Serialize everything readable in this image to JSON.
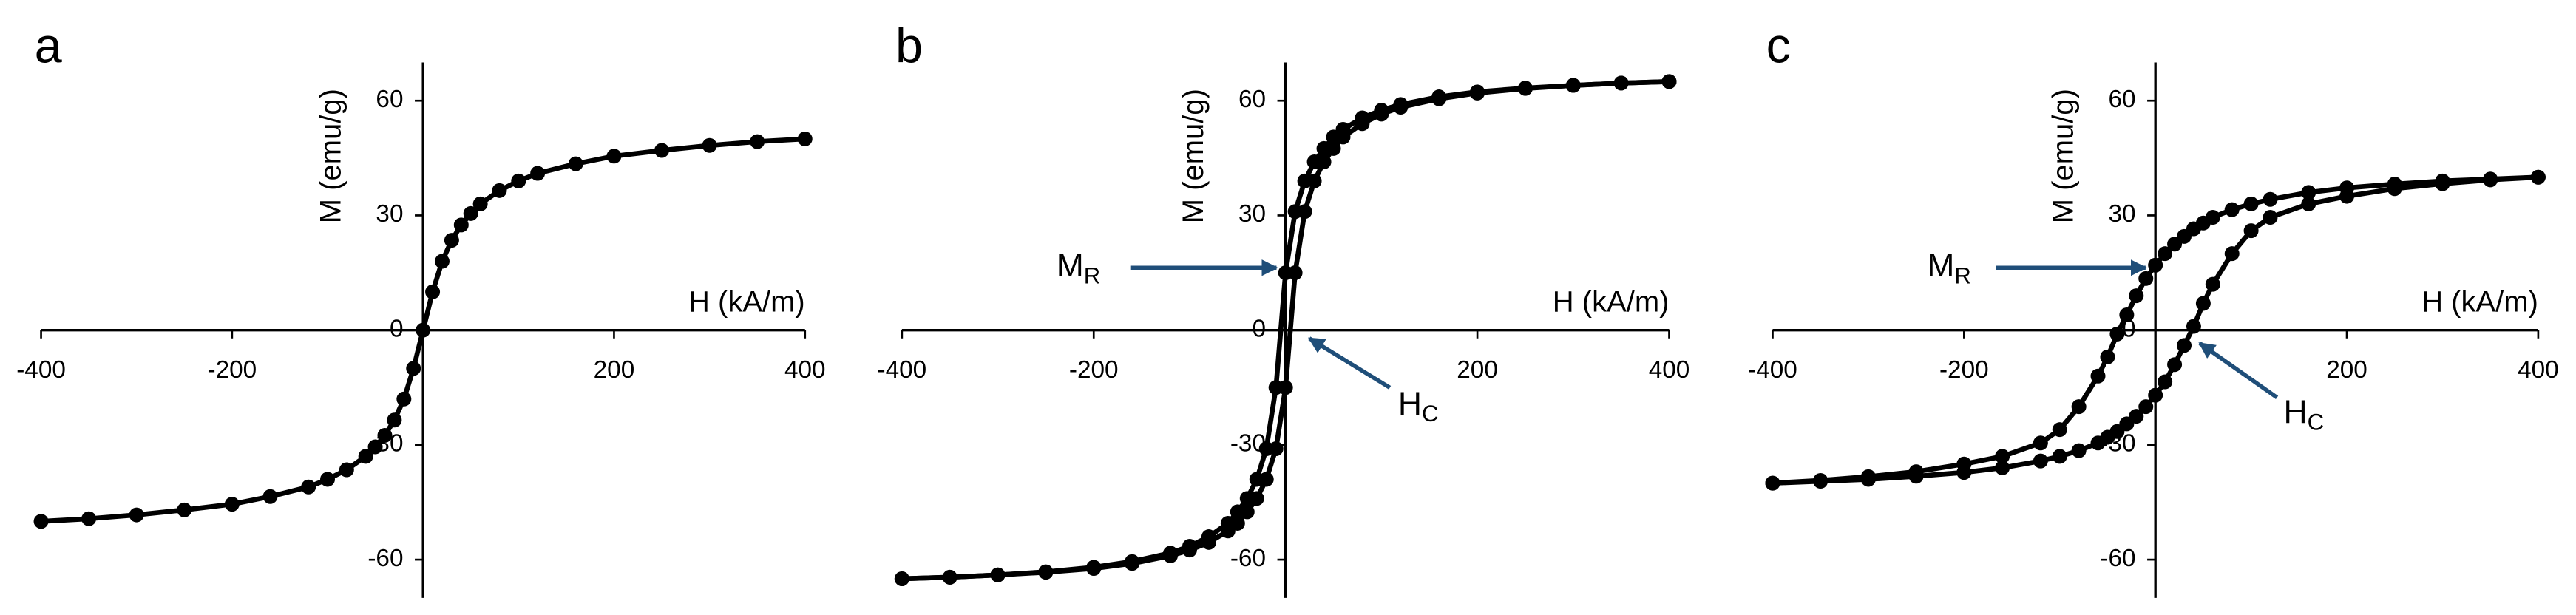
{
  "chart_data": [
    {
      "type": "line",
      "panel_label": "a",
      "xlabel": "H (kA/m)",
      "ylabel": "M (emu/g)",
      "x": [
        -400,
        -350,
        -300,
        -250,
        -200,
        -160,
        -120,
        -100,
        -80,
        -60,
        -50,
        -40,
        -30,
        -20,
        -10,
        0,
        10,
        20,
        30,
        40,
        50,
        60,
        80,
        100,
        120,
        160,
        200,
        250,
        300,
        350,
        400
      ],
      "series": [
        {
          "color": "#000000",
          "values": [
            -50,
            -49.3,
            -48.3,
            -47,
            -45.5,
            -43.5,
            -41,
            -39,
            -36.5,
            -33,
            -30.5,
            -27.5,
            -23.5,
            -18,
            -10,
            0,
            10,
            18,
            23.5,
            27.5,
            30.5,
            33,
            36.5,
            39,
            41,
            43.5,
            45.5,
            47,
            48.3,
            49.3,
            50
          ]
        }
      ],
      "xlim": [
        -400,
        400
      ],
      "ylim": [
        -70,
        70
      ],
      "xticks": [
        -400,
        -200,
        200,
        400
      ],
      "yticks": [
        -60,
        -30,
        0,
        30,
        60
      ]
    },
    {
      "type": "line",
      "panel_label": "b",
      "xlabel": "H (kA/m)",
      "ylabel": "M (emu/g)",
      "x": [
        -400,
        -350,
        -300,
        -250,
        -200,
        -160,
        -120,
        -100,
        -80,
        -60,
        -50,
        -40,
        -30,
        -20,
        -10,
        0,
        10,
        20,
        30,
        40,
        50,
        60,
        80,
        100,
        120,
        160,
        200,
        250,
        300,
        350,
        400
      ],
      "series": [
        {
          "color": "#000000",
          "values": [
            -65,
            -64.6,
            -64,
            -63.2,
            -62,
            -60.5,
            -58.3,
            -56.5,
            -54,
            -50.5,
            -47.5,
            -44,
            -39,
            -31,
            -15,
            15,
            31,
            39,
            44,
            47.5,
            50.5,
            52.5,
            55.5,
            57.5,
            59,
            61,
            62.3,
            63.3,
            64,
            64.6,
            65
          ]
        },
        {
          "color": "#000000",
          "values": [
            -65,
            -64.6,
            -64,
            -63.3,
            -62.3,
            -61,
            -59,
            -57.5,
            -55.5,
            -52.5,
            -50.5,
            -47.5,
            -44,
            -39,
            -31,
            -15,
            15,
            31,
            39,
            44,
            47.5,
            50.5,
            54,
            56.5,
            58.3,
            60.5,
            62,
            63.2,
            64,
            64.6,
            65
          ]
        }
      ],
      "xlim": [
        -400,
        400
      ],
      "ylim": [
        -70,
        70
      ],
      "xticks": [
        -400,
        -200,
        200,
        400
      ],
      "yticks": [
        -60,
        -30,
        0,
        30,
        60
      ],
      "annotations": [
        {
          "text": "M",
          "subscript": "R"
        },
        {
          "text": "H",
          "subscript": "C"
        }
      ]
    },
    {
      "type": "line",
      "panel_label": "c",
      "xlabel": "H (kA/m)",
      "ylabel": "M (emu/g)",
      "x": [
        -400,
        -350,
        -300,
        -250,
        -200,
        -160,
        -120,
        -100,
        -80,
        -60,
        -50,
        -40,
        -30,
        -20,
        -10,
        0,
        10,
        20,
        30,
        40,
        50,
        60,
        80,
        100,
        120,
        160,
        200,
        250,
        300,
        350,
        400
      ],
      "series": [
        {
          "color": "#000000",
          "values": [
            -40,
            -39.3,
            -38.3,
            -37,
            -35,
            -33,
            -29.5,
            -26,
            -20,
            -12,
            -7,
            -1,
            4,
            9,
            13.5,
            17,
            20,
            22.5,
            24.5,
            26.5,
            28,
            29.5,
            31.5,
            33,
            34.2,
            36,
            37.2,
            38.2,
            39,
            39.5,
            40
          ]
        },
        {
          "color": "#000000",
          "values": [
            -40,
            -39.5,
            -39,
            -38.2,
            -37.2,
            -36,
            -34.2,
            -33,
            -31.5,
            -29.5,
            -28,
            -26.5,
            -24.5,
            -22.5,
            -20,
            -17,
            -13.5,
            -9,
            -4,
            1,
            7,
            12,
            20,
            26,
            29.5,
            33,
            35,
            37,
            38.3,
            39.3,
            40
          ]
        }
      ],
      "xlim": [
        -400,
        400
      ],
      "ylim": [
        -70,
        70
      ],
      "xticks": [
        -400,
        -200,
        200,
        400
      ],
      "yticks": [
        -60,
        -30,
        0,
        30,
        60
      ],
      "annotations": [
        {
          "text": "M",
          "subscript": "R"
        },
        {
          "text": "H",
          "subscript": "C"
        }
      ]
    }
  ]
}
